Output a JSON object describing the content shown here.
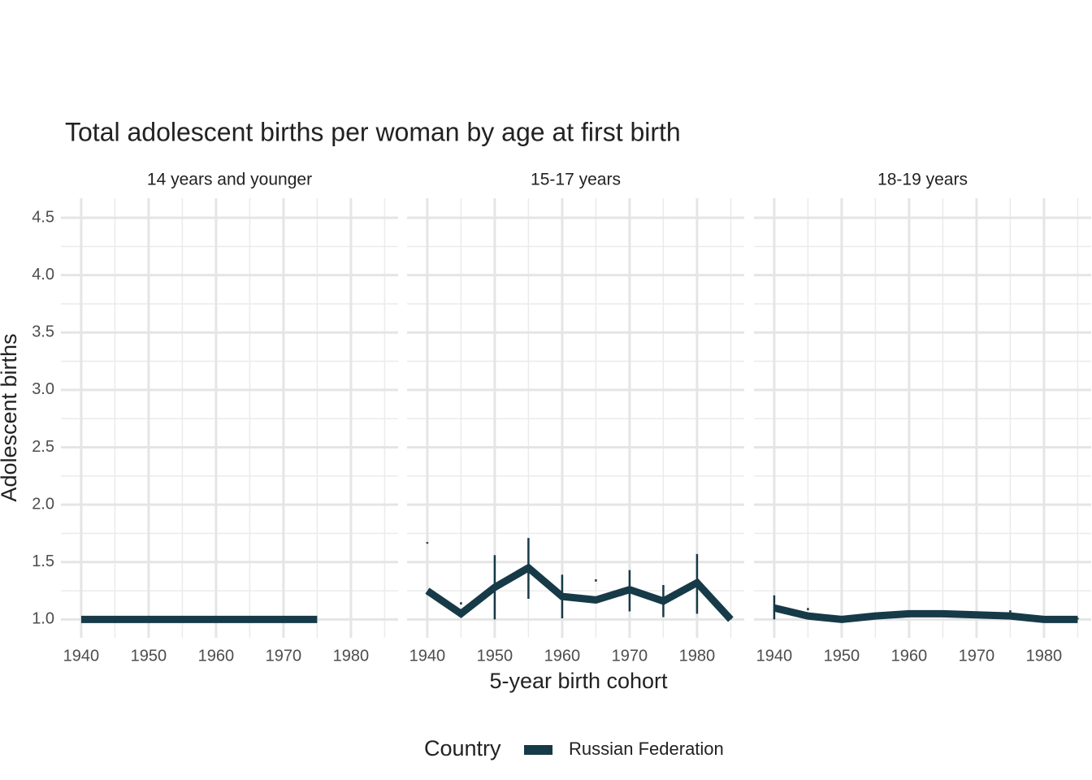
{
  "figure": {
    "title": "Total adolescent births per woman by age at first birth",
    "xlabel": "5-year birth cohort",
    "ylabel": "Adolescent births",
    "legend_title": "Country"
  },
  "chart_data": [
    {
      "type": "line",
      "title": "14 years and younger",
      "x": [
        1940,
        1945,
        1950,
        1955,
        1960,
        1965,
        1970,
        1975
      ],
      "series": [
        {
          "name": "Russian Federation",
          "color": "#163a47",
          "values": [
            1.0,
            1.0,
            1.0,
            1.0,
            1.0,
            1.0,
            1.0,
            1.0
          ]
        }
      ],
      "xlim": [
        1937,
        1987
      ],
      "ylim": [
        0.84,
        4.67
      ],
      "xticks": [
        1940,
        1950,
        1960,
        1970,
        1980
      ],
      "x_minor_ticks": [
        1945,
        1955,
        1965,
        1975,
        1985
      ],
      "yticks": [
        {
          "value": 1,
          "label": "1.0"
        },
        {
          "value": 1.5,
          "label": "1.5"
        },
        {
          "value": 2,
          "label": "2.0"
        },
        {
          "value": 2.5,
          "label": "2.5"
        },
        {
          "value": 3,
          "label": "3.0"
        },
        {
          "value": 3.5,
          "label": "3.5"
        },
        {
          "value": 4,
          "label": "4.0"
        },
        {
          "value": 4.5,
          "label": "4.5"
        }
      ],
      "y_minor_ticks": [
        1.25,
        1.75,
        2.25,
        2.75,
        3.25,
        3.75,
        4.25
      ],
      "grid": true
    },
    {
      "type": "line",
      "title": "15-17 years",
      "x": [
        1940,
        1945,
        1950,
        1955,
        1960,
        1965,
        1970,
        1975,
        1980,
        1985
      ],
      "series": [
        {
          "name": "Russian Federation",
          "color": "#163a47",
          "values": [
            1.25,
            1.05,
            1.28,
            1.45,
            1.2,
            1.17,
            1.26,
            1.16,
            1.32,
            1.0
          ],
          "lower": [
            1.66,
            1.13,
            1.0,
            1.18,
            1.01,
            1.33,
            1.07,
            1.02,
            1.05,
            1.0
          ],
          "upper": [
            1.67,
            1.15,
            1.56,
            1.71,
            1.39,
            1.35,
            1.43,
            1.3,
            1.57,
            1.02
          ]
        }
      ],
      "xlim": [
        1937,
        1987
      ],
      "ylim": [
        0.84,
        4.67
      ],
      "xticks": [
        1940,
        1950,
        1960,
        1970,
        1980
      ],
      "x_minor_ticks": [
        1945,
        1955,
        1965,
        1975,
        1985
      ],
      "yticks": [
        {
          "value": 1,
          "label": "1.0"
        },
        {
          "value": 1.5,
          "label": "1.5"
        },
        {
          "value": 2,
          "label": "2.0"
        },
        {
          "value": 2.5,
          "label": "2.5"
        },
        {
          "value": 3,
          "label": "3.0"
        },
        {
          "value": 3.5,
          "label": "3.5"
        },
        {
          "value": 4,
          "label": "4.0"
        },
        {
          "value": 4.5,
          "label": "4.5"
        }
      ],
      "y_minor_ticks": [
        1.25,
        1.75,
        2.25,
        2.75,
        3.25,
        3.75,
        4.25
      ],
      "grid": true
    },
    {
      "type": "line",
      "title": "18-19 years",
      "x": [
        1940,
        1945,
        1950,
        1955,
        1960,
        1965,
        1970,
        1975,
        1980,
        1985
      ],
      "series": [
        {
          "name": "Russian Federation",
          "color": "#163a47",
          "values": [
            1.1,
            1.03,
            1.0,
            1.03,
            1.05,
            1.05,
            1.04,
            1.03,
            1.0,
            1.0
          ],
          "lower": [
            1.0,
            1.08,
            1.0,
            1.02,
            1.03,
            1.02,
            1.02,
            1.02,
            1.0,
            1.0
          ],
          "upper": [
            1.21,
            1.1,
            1.01,
            1.06,
            1.08,
            1.07,
            1.06,
            1.08,
            1.01,
            1.01
          ]
        }
      ],
      "xlim": [
        1937,
        1987
      ],
      "ylim": [
        0.84,
        4.67
      ],
      "xticks": [
        1940,
        1950,
        1960,
        1970,
        1980
      ],
      "x_minor_ticks": [
        1945,
        1955,
        1965,
        1975,
        1985
      ],
      "yticks": [
        {
          "value": 1,
          "label": "1.0"
        },
        {
          "value": 1.5,
          "label": "1.5"
        },
        {
          "value": 2,
          "label": "2.0"
        },
        {
          "value": 2.5,
          "label": "2.5"
        },
        {
          "value": 3,
          "label": "3.0"
        },
        {
          "value": 3.5,
          "label": "3.5"
        },
        {
          "value": 4,
          "label": "4.0"
        },
        {
          "value": 4.5,
          "label": "4.5"
        }
      ],
      "y_minor_ticks": [
        1.25,
        1.75,
        2.25,
        2.75,
        3.25,
        3.75,
        4.25
      ],
      "grid": true
    }
  ]
}
